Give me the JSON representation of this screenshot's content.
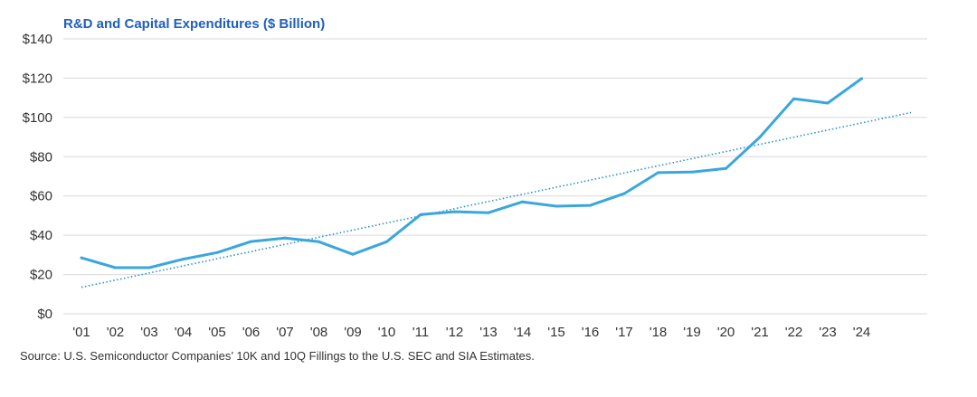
{
  "colors": {
    "title": "#1f5fbf",
    "line": "#3aa7dc",
    "trend": "#2b8fd0",
    "grid": "#d9d9d9"
  },
  "chart_data": {
    "type": "line",
    "title": "R&D and Capital Expenditures ($ Billion)",
    "source": "Source: U.S. Semiconductor Companies’ 10K and 10Q Fillings to the U.S. SEC and SIA Estimates.",
    "xlabel": "",
    "ylabel": "",
    "ylim": [
      0,
      140
    ],
    "y_ticks": [
      0,
      20,
      40,
      60,
      80,
      100,
      120,
      140
    ],
    "y_tick_labels": [
      "$0",
      "$20",
      "$40",
      "$60",
      "$80",
      "$100",
      "$120",
      "$140"
    ],
    "categories": [
      "'01",
      "'02",
      "'03",
      "'04",
      "'05",
      "'06",
      "'07",
      "'08",
      "'09",
      "'10",
      "'11",
      "'12",
      "'13",
      "'14",
      "'15",
      "'16",
      "'17",
      "'18",
      "'19",
      "'20",
      "'21",
      "'22",
      "'23",
      "'24"
    ],
    "grid": true,
    "series": [
      {
        "name": "R&D and Capital Expenditures",
        "values": [
          28.5,
          23.5,
          23.5,
          27.8,
          31.2,
          36.8,
          38.6,
          36.7,
          30.3,
          36.7,
          50.5,
          52.0,
          51.5,
          57.0,
          54.8,
          55.2,
          61.2,
          71.9,
          72.2,
          74.0,
          90.0,
          109.5,
          107.3,
          119.8
        ]
      }
    ],
    "trendline": {
      "name": "Linear trend",
      "start": 13.5,
      "end": 102.5
    }
  }
}
